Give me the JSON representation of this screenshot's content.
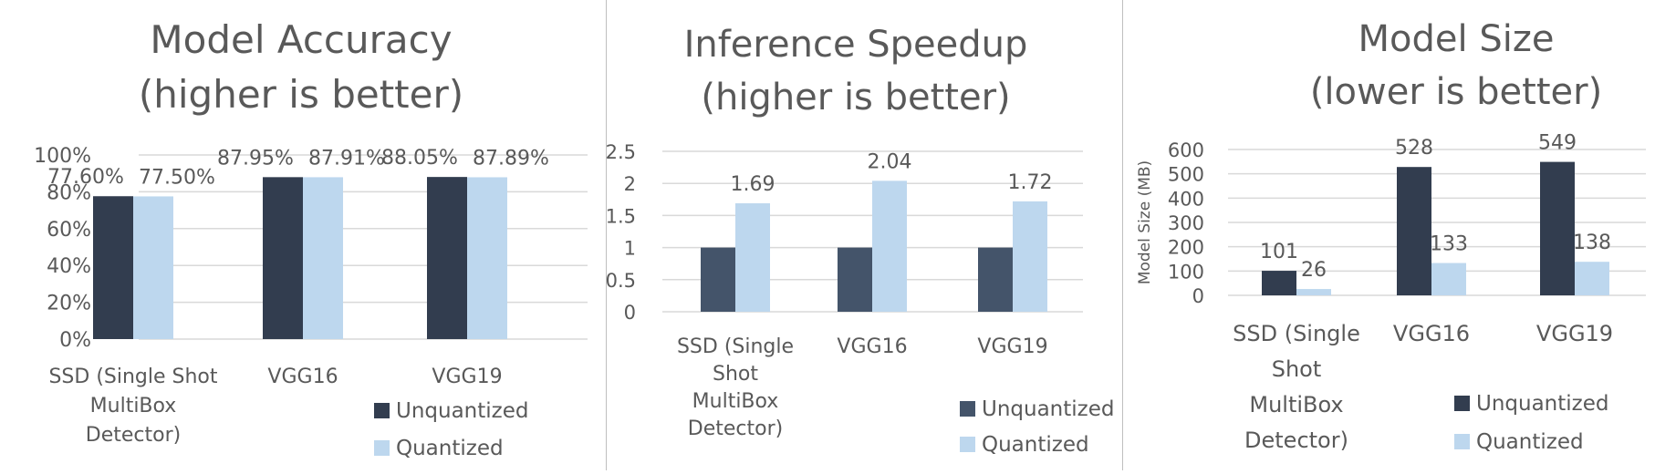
{
  "colors": {
    "unquantized_panel1": "#323d4f",
    "unquantized_panel2": "#44546a",
    "unquantized_panel3": "#323d4f",
    "quantized": "#bdd7ee",
    "text": "#595959",
    "grid": "#d9d9d9"
  },
  "chart_data": [
    {
      "type": "bar",
      "title": "Model Accuracy",
      "subtitle": "(higher is better)",
      "categories": [
        "SSD (Single Shot MultiBox Detector)",
        "VGG16",
        "VGG19"
      ],
      "category_display": [
        [
          "SSD (Single Shot",
          "MultiBox",
          "Detector)"
        ],
        [
          "VGG16"
        ],
        [
          "VGG19"
        ]
      ],
      "series": [
        {
          "name": "Unquantized",
          "values": [
            77.6,
            87.95,
            88.05
          ],
          "labels": [
            "77.60%",
            "87.95%",
            "88.05%"
          ]
        },
        {
          "name": "Quantized",
          "values": [
            77.5,
            87.91,
            87.89
          ],
          "labels": [
            "77.50%",
            "87.91%",
            "87.89%"
          ]
        }
      ],
      "ylim": [
        0,
        100
      ],
      "yticks": [
        0,
        20,
        40,
        60,
        80,
        100
      ],
      "ytick_labels": [
        "0%",
        "20%",
        "40%",
        "60%",
        "80%",
        "100%"
      ],
      "ylabel": "",
      "xlabel": "",
      "grid": true,
      "legend": "bottom-right"
    },
    {
      "type": "bar",
      "title": "Inference Speedup",
      "subtitle": "(higher is better)",
      "categories": [
        "SSD (Single Shot MultiBox Detector)",
        "VGG16",
        "VGG19"
      ],
      "category_display": [
        [
          "SSD (Single",
          "Shot",
          "MultiBox",
          "Detector)"
        ],
        [
          "VGG16"
        ],
        [
          "VGG19"
        ]
      ],
      "series": [
        {
          "name": "Unquantized",
          "values": [
            1,
            1,
            1
          ],
          "labels": [
            "",
            "",
            ""
          ]
        },
        {
          "name": "Quantized",
          "values": [
            1.69,
            2.04,
            1.72
          ],
          "labels": [
            "1.69",
            "2.04",
            "1.72"
          ]
        }
      ],
      "ylim": [
        0,
        2.5
      ],
      "yticks": [
        0,
        0.5,
        1,
        1.5,
        2,
        2.5
      ],
      "ytick_labels": [
        "0",
        "0.5",
        "1",
        "1.5",
        "2",
        "2.5"
      ],
      "ylabel": "",
      "xlabel": "",
      "grid": true,
      "legend": "bottom-right"
    },
    {
      "type": "bar",
      "title": "Model Size",
      "subtitle": "(lower is better)",
      "categories": [
        "SSD (Single Shot MultiBox Detector)",
        "VGG16",
        "VGG19"
      ],
      "category_display": [
        [
          "SSD (Single",
          "Shot",
          "MultiBox",
          "Detector)"
        ],
        [
          "VGG16"
        ],
        [
          "VGG19"
        ]
      ],
      "series": [
        {
          "name": "Unquantized",
          "values": [
            101,
            528,
            549
          ],
          "labels": [
            "101",
            "528",
            "549"
          ]
        },
        {
          "name": "Quantized",
          "values": [
            26,
            133,
            138
          ],
          "labels": [
            "26",
            "133",
            "138"
          ]
        }
      ],
      "ylim": [
        0,
        600
      ],
      "yticks": [
        0,
        100,
        200,
        300,
        400,
        500,
        600
      ],
      "ytick_labels": [
        "0",
        "100",
        "200",
        "300",
        "400",
        "500",
        "600"
      ],
      "ylabel": "Model Size (MB)",
      "xlabel": "",
      "grid": true,
      "legend": "bottom-right"
    }
  ]
}
